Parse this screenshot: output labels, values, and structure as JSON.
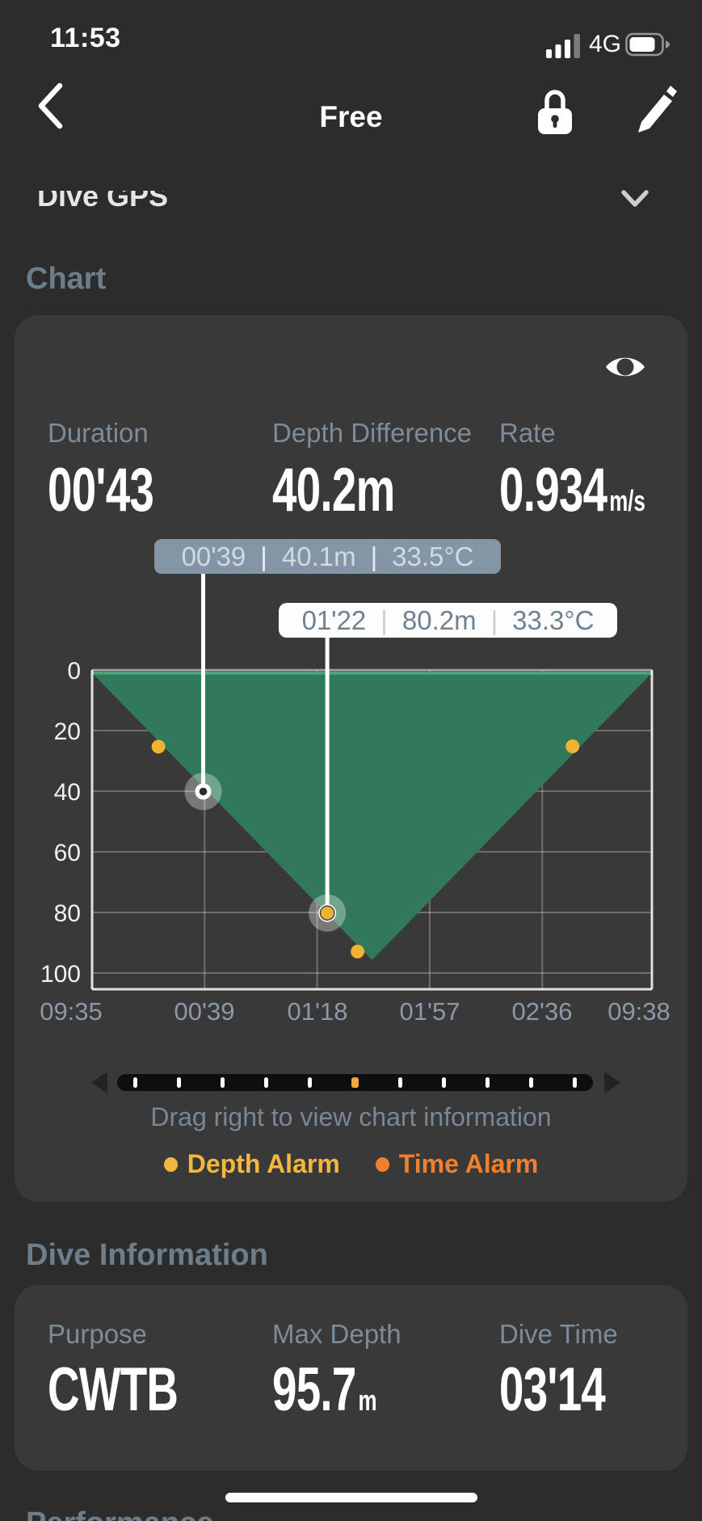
{
  "status_bar": {
    "time": "11:53",
    "network": "4G",
    "signal_bars_filled": 3,
    "signal_bars_total": 4,
    "battery_fill_ratio": 0.72
  },
  "nav": {
    "title": "Free"
  },
  "collapsed_section": {
    "label": "Dive GPS"
  },
  "chart_section": {
    "header": "Chart",
    "stats": [
      {
        "label": "Duration",
        "value": "00'43",
        "unit": ""
      },
      {
        "label": "Depth Difference",
        "value": "40.2m",
        "unit": ""
      },
      {
        "label": "Rate",
        "value": "0.934",
        "unit": "m/s"
      }
    ],
    "tooltip_separator": "|",
    "tooltips": [
      {
        "time": "00'39",
        "depth": "40.1m",
        "temp": "33.5°C"
      },
      {
        "time": "01'22",
        "depth": "80.2m",
        "temp": "33.3°C"
      }
    ],
    "scrubber": {
      "tick_count": 11,
      "active_index": 5
    },
    "hint": "Drag right to view chart information",
    "legend": [
      {
        "label": "Depth Alarm",
        "color": "#f3b73d"
      },
      {
        "label": "Time Alarm",
        "color": "#f0802e"
      }
    ]
  },
  "chart_data": {
    "type": "area",
    "x_ticks": [
      "09:35",
      "00'39",
      "01'18",
      "01'57",
      "02'36",
      "09:38"
    ],
    "x_tick_seconds": [
      null,
      39,
      78,
      117,
      156,
      null
    ],
    "t_total_s": 194,
    "y_ticks": [
      0,
      20,
      40,
      60,
      80,
      100
    ],
    "y_axis": "depth_m",
    "ylim": [
      0,
      105
    ],
    "max_depth_m": 95.7,
    "profile_t_depth": [
      [
        0,
        1
      ],
      [
        97,
        95.7
      ],
      [
        194,
        1
      ]
    ],
    "selected_points": [
      {
        "t_s": 38.5,
        "depth_m": 40.1,
        "marker": "white-dot"
      },
      {
        "t_s": 81.5,
        "depth_m": 80.2,
        "marker": "yellow-dot"
      }
    ],
    "alarm_points_t_depth": [
      [
        23,
        25.3
      ],
      [
        92,
        92.9
      ],
      [
        166.5,
        25.2
      ]
    ],
    "area_color": "#32795b",
    "surface_line_color": "#4da47c",
    "alarm_color": "#f0b231",
    "grid": true,
    "legend_position": "bottom"
  },
  "dive_info": {
    "header": "Dive Information",
    "stats": [
      {
        "label": "Purpose",
        "value": "CWTB",
        "unit": ""
      },
      {
        "label": "Max Depth",
        "value": "95.7",
        "unit": "m"
      },
      {
        "label": "Dive Time",
        "value": "03'14",
        "unit": ""
      }
    ]
  },
  "next_section": {
    "header": "Performance"
  },
  "colors": {
    "page_bg": "#2d2c2c",
    "card_bg": "#3a3939",
    "header_slate": "#6d7e8a",
    "label_slate": "#7c8c99",
    "tick_slate": "#8a9aa8",
    "hint_slate": "#798795",
    "tooltip1_bg": "#8496a6",
    "tooltip1_text": "#cfdae2",
    "tooltip2_text": "#6e8291"
  }
}
